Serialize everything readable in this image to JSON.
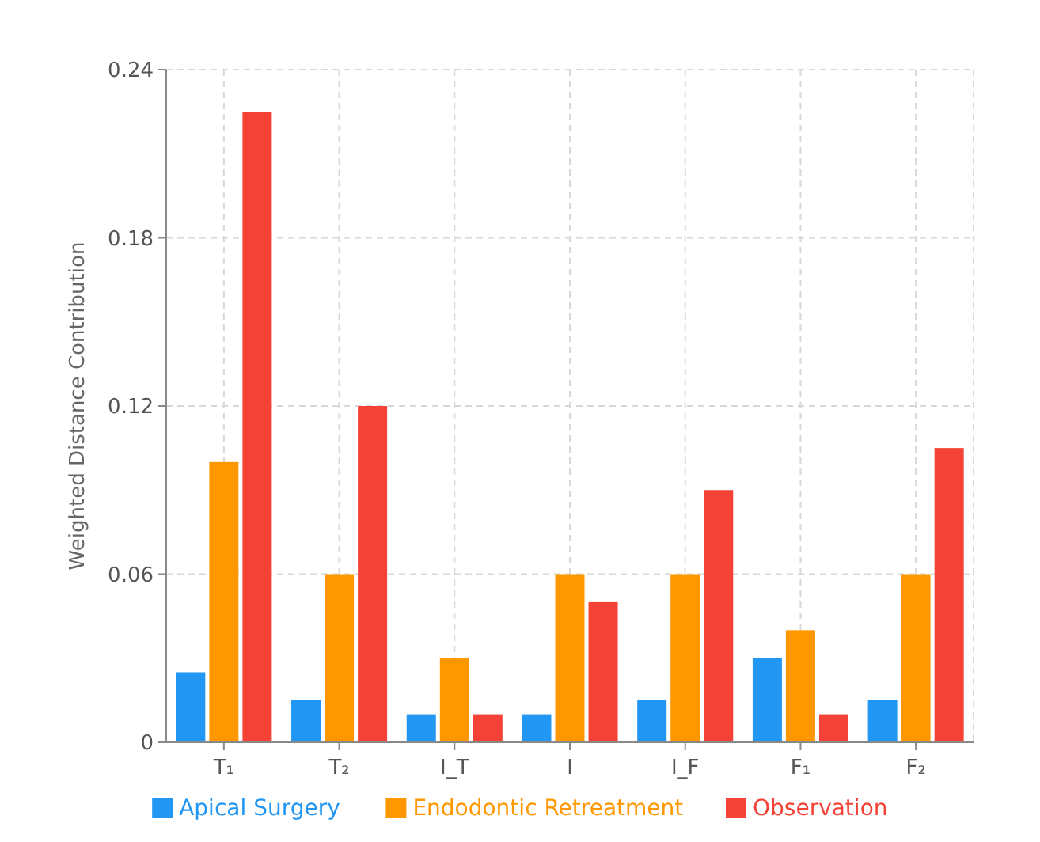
{
  "chart_data": {
    "type": "bar",
    "ylabel": "Weighted Distance Contribution",
    "categories": [
      "T₁",
      "T₂",
      "I_T",
      "I",
      "I_F",
      "F₁",
      "F₂"
    ],
    "series": [
      {
        "name": "Apical Surgery",
        "color": "#2196f3",
        "values": [
          0.025,
          0.015,
          0.01,
          0.01,
          0.015,
          0.03,
          0.015
        ]
      },
      {
        "name": "Endodontic Retreatment",
        "color": "#ff9800",
        "values": [
          0.1,
          0.06,
          0.03,
          0.06,
          0.06,
          0.04,
          0.06
        ]
      },
      {
        "name": "Observation",
        "color": "#f44336",
        "values": [
          0.225,
          0.12,
          0.01,
          0.05,
          0.09,
          0.01,
          0.105
        ]
      }
    ],
    "ylim": [
      0,
      0.24
    ],
    "yticks": [
      0,
      0.06,
      0.12,
      0.18,
      0.24
    ],
    "grid": true,
    "legend": "bottom"
  }
}
